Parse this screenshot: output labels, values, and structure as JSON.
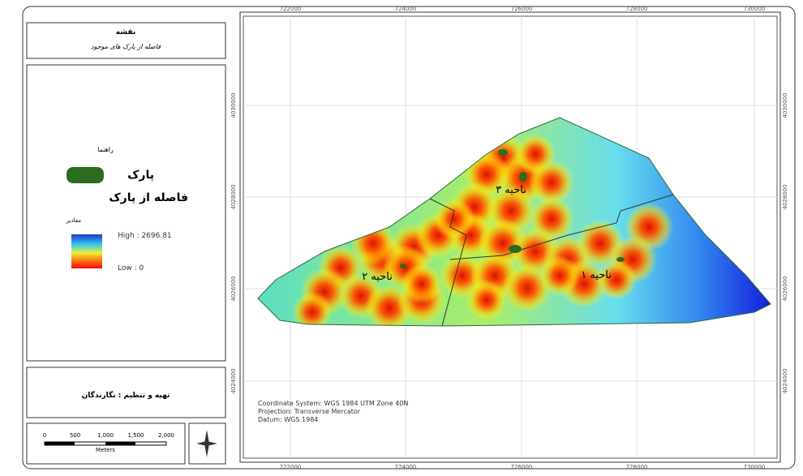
{
  "title_box": {
    "title": "نقشه",
    "subtitle": "فاصله از پارک های موجود"
  },
  "legend": {
    "heading": "راهنما",
    "park": "پارک",
    "layer": "فاصله از پارک",
    "field": "مقادیر",
    "high": "High : 2696.81",
    "low": "Low : 0"
  },
  "credits": "تهیه و تنظیم : نگارندگان",
  "scale_bar": {
    "labels": [
      "0",
      "500",
      "1,000",
      "1,500",
      "2,000"
    ],
    "unit": "Meters"
  },
  "map": {
    "x_labels": [
      "722000",
      "724000",
      "726000",
      "728000",
      "730000"
    ],
    "y_labels": [
      "4030000",
      "4028000",
      "4026000",
      "4024000"
    ],
    "districts": [
      "ناحیه ۳",
      "ناحیه ۲",
      "ناحیه ۱"
    ],
    "coordinate_info": [
      "Coordinate System: WGS 1984 UTM Zone 40N",
      "Projection: Transverse Mercator",
      "Datum: WGS 1984"
    ]
  }
}
